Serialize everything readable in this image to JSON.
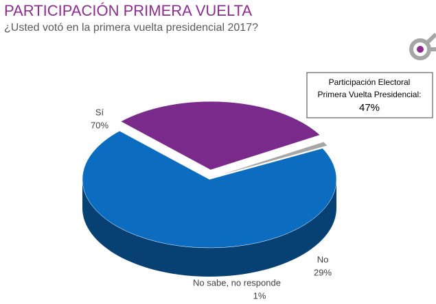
{
  "chart_data": {
    "type": "pie",
    "title": "PARTICIPACIÓN PRIMERA VUELTA",
    "subtitle": "¿Usted votó en la primera vuelta presidencial 2017?",
    "categories": [
      "Sí",
      "No",
      "No sabe, no responde"
    ],
    "values": [
      70,
      29,
      1
    ],
    "value_labels": [
      "70%",
      "29%",
      "1%"
    ],
    "colors": [
      "#0b6cc0",
      "#7a2a8a",
      "#a6a6a6"
    ],
    "annotation": [
      "Participación Electoral",
      "Primera Vuelta Presidencial:",
      "47%"
    ]
  }
}
